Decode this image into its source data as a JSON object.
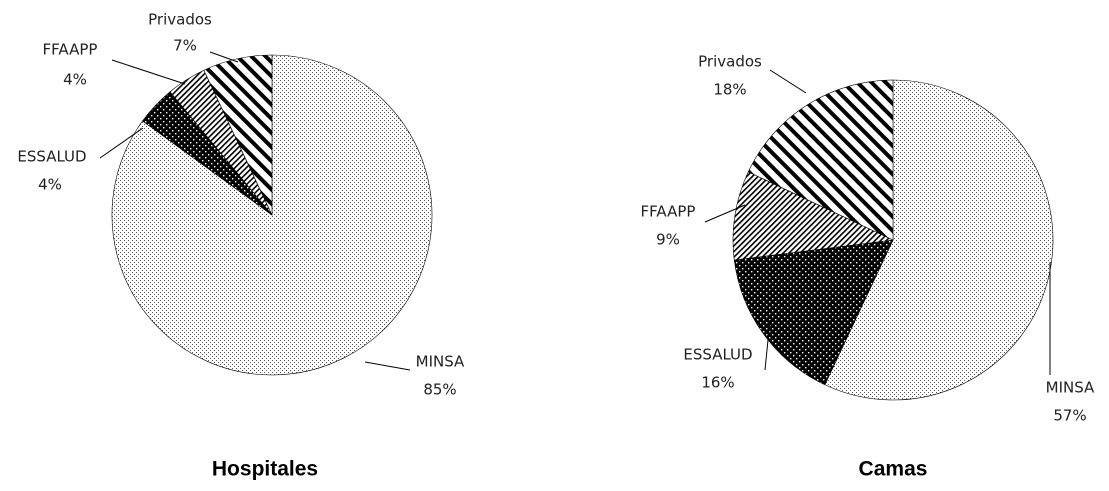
{
  "chart_data": [
    {
      "type": "pie",
      "title": "Hospitales",
      "categories": [
        "MINSA",
        "ESSALUD",
        "FFAAPP",
        "Privados"
      ],
      "values": [
        85,
        4,
        4,
        7
      ],
      "value_labels": [
        "85%",
        "4%",
        "4%",
        "7%"
      ]
    },
    {
      "type": "pie",
      "title": "Camas",
      "categories": [
        "MINSA",
        "ESSALUD",
        "FFAAPP",
        "Privados"
      ],
      "values": [
        57,
        16,
        9,
        18
      ],
      "value_labels": [
        "57%",
        "16%",
        "9%",
        "18%"
      ]
    }
  ]
}
